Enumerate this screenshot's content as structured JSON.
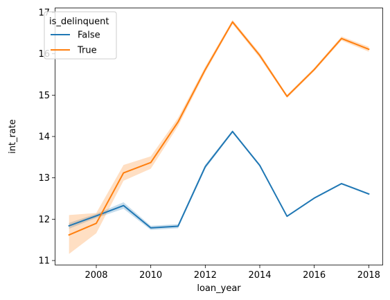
{
  "chart_data": {
    "type": "line",
    "title": "",
    "xlabel": "loan_year",
    "ylabel": "int_rate",
    "xlim": [
      2006.5,
      2018.5
    ],
    "ylim": [
      10.9,
      17.1
    ],
    "xticks": [
      2008,
      2010,
      2012,
      2014,
      2016,
      2018
    ],
    "yticks": [
      11,
      12,
      13,
      14,
      15,
      16,
      17
    ],
    "grid": false,
    "legend": {
      "title": "is_delinquent",
      "placement": "top-left"
    },
    "x": [
      2007,
      2008,
      2009,
      2010,
      2011,
      2012,
      2013,
      2014,
      2015,
      2016,
      2017,
      2018
    ],
    "series": [
      {
        "name": "False",
        "color": "#1f77b4",
        "values": [
          11.84,
          12.08,
          12.33,
          11.79,
          11.83,
          13.27,
          14.12,
          13.3,
          12.07,
          12.51,
          12.86,
          12.61
        ],
        "ci_lower": [
          11.77,
          12.03,
          12.25,
          11.74,
          11.78,
          13.22,
          14.09,
          13.27,
          12.05,
          12.49,
          12.84,
          12.59
        ],
        "ci_upper": [
          11.91,
          12.13,
          12.41,
          11.84,
          11.88,
          13.32,
          14.15,
          13.33,
          12.09,
          12.53,
          12.88,
          12.63
        ]
      },
      {
        "name": "True",
        "color": "#ff7f0e",
        "values": [
          11.62,
          11.9,
          13.12,
          13.37,
          14.35,
          15.62,
          16.77,
          15.96,
          14.97,
          15.62,
          16.37,
          16.11
        ],
        "ci_lower": [
          11.16,
          11.66,
          12.93,
          13.22,
          14.25,
          15.55,
          16.72,
          15.9,
          14.93,
          15.58,
          16.32,
          16.05
        ],
        "ci_upper": [
          12.1,
          12.15,
          13.31,
          13.52,
          14.45,
          15.69,
          16.82,
          16.02,
          15.01,
          15.66,
          16.42,
          16.17
        ]
      }
    ]
  }
}
